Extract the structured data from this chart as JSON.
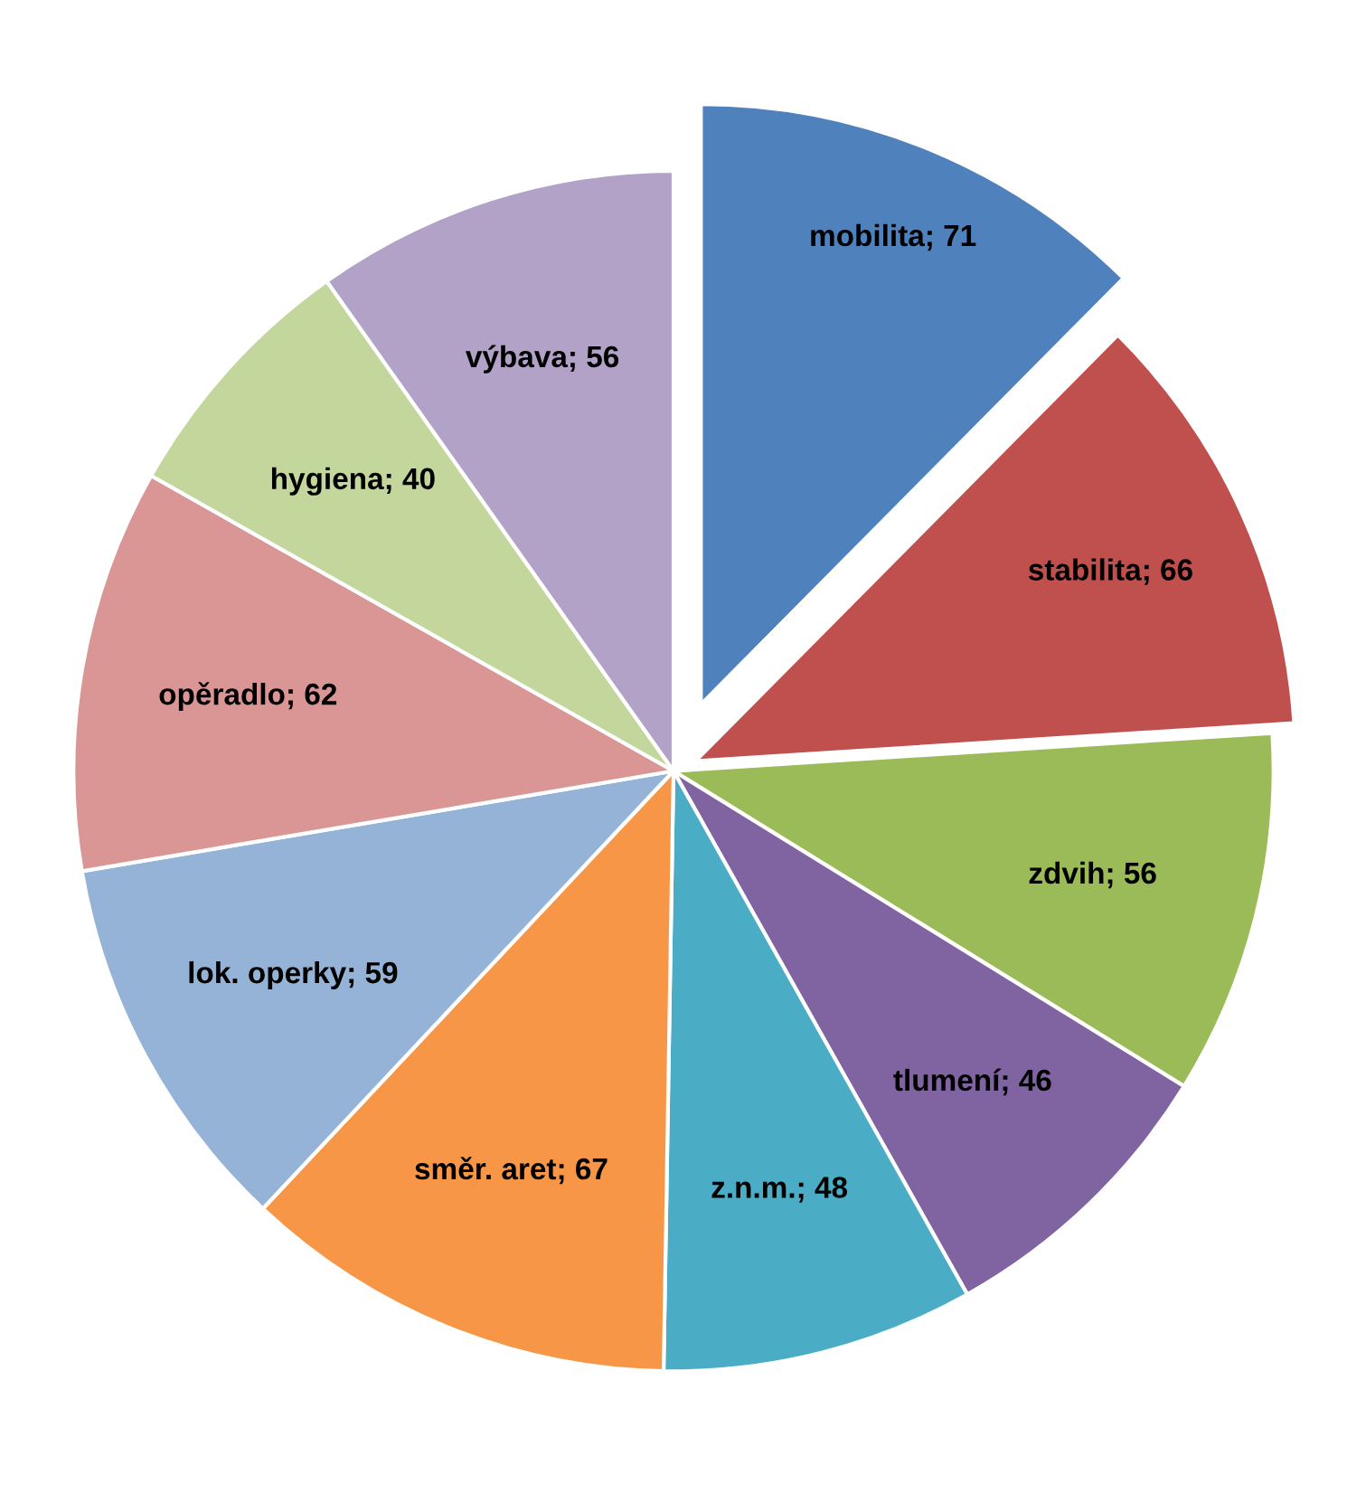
{
  "chart_data": {
    "type": "pie",
    "categories": [
      "mobilita; 71",
      "stabilita; 66",
      "zdvih; 56",
      "tlumení; 46",
      "z.n.m.; 48",
      "směr. aret; 67",
      "lok. operky; 59",
      "opěradlo; 62",
      "hygiena; 40",
      "výbava; 56"
    ],
    "values": [
      71,
      66,
      56,
      46,
      48,
      67,
      59,
      62,
      40,
      56
    ],
    "colors": [
      "#4f81bd",
      "#c0504d",
      "#9bbb59",
      "#8064a2",
      "#4bacc6",
      "#f79646",
      "#95b3d7",
      "#d99694",
      "#c3d69b",
      "#b3a2c7"
    ],
    "legend": false
  }
}
